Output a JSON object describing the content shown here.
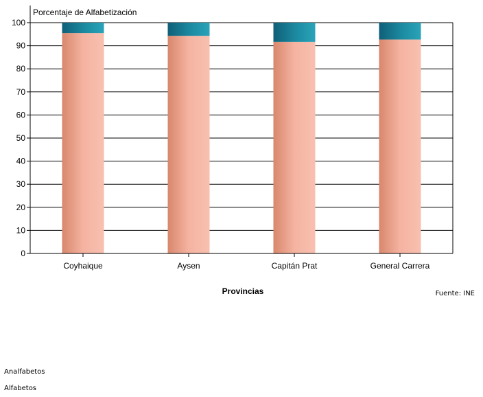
{
  "chart_data": {
    "type": "bar",
    "stacked": true,
    "title": "Porcentaje de Alfabetización",
    "xlabel": "Provincias",
    "ylabel": "",
    "categories": [
      "Coyhaique",
      "Aysen",
      "Capitán Prat",
      "General Carrera"
    ],
    "series": [
      {
        "name": "Alfabetos",
        "values": [
          95.5,
          94.3,
          91.7,
          92.7
        ],
        "color": "#f4b1a0"
      },
      {
        "name": "Analfabetos",
        "values": [
          4.5,
          5.7,
          8.3,
          7.3
        ],
        "color": "#1d8299"
      }
    ],
    "ylim": [
      0,
      100
    ],
    "yticks": [
      "0",
      "10",
      "20",
      "30",
      "40",
      "50",
      "60",
      "70",
      "80",
      "90",
      "100"
    ],
    "grid": true,
    "legend_position": "bottom-left"
  },
  "source": "Fuente: INE"
}
